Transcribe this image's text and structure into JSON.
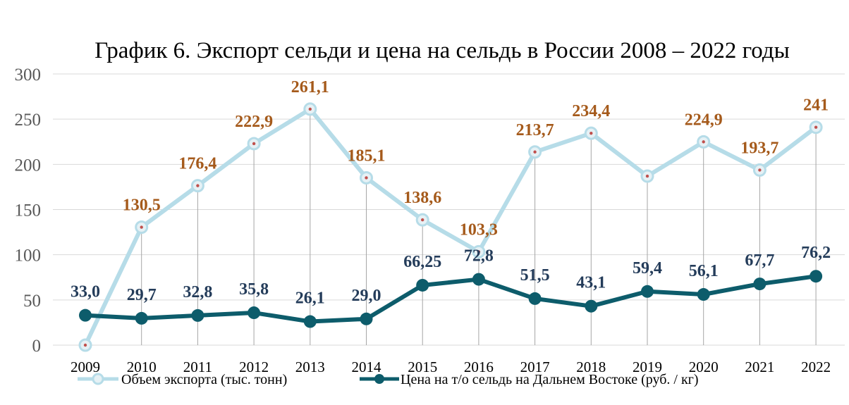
{
  "chart_data": {
    "type": "line",
    "title": "График 6. Экспорт сельди и цена на сельдь в России 2008 – 2022 годы",
    "categories": [
      "2009",
      "2010",
      "2011",
      "2012",
      "2013",
      "2014",
      "2015",
      "2016",
      "2017",
      "2018",
      "2019",
      "2020",
      "2021",
      "2022"
    ],
    "ylim": [
      0,
      300
    ],
    "yticks": [
      "0",
      "50",
      "100",
      "150",
      "200",
      "250",
      "300"
    ],
    "grid": true,
    "legend_position": "bottom",
    "series": [
      {
        "name": "Объем экспорта (тыс. тонн)",
        "color": "#b6dce8",
        "marker_color": "#c0504d",
        "label_color": "#a55a1b",
        "values": [
          0,
          130.5,
          176.4,
          222.9,
          261.1,
          185.1,
          138.6,
          103.3,
          213.7,
          234.4,
          187,
          224.9,
          193.7,
          241
        ],
        "labels": [
          "",
          "130,5",
          "176,4",
          "222,9",
          "261,1",
          "185,1",
          "138,6",
          "103,3",
          "213,7",
          "234,4",
          "",
          "224,9",
          "193,7",
          "241"
        ]
      },
      {
        "name": "Цена на т/о сельдь на Дальнем Востоке (руб. / кг)",
        "color": "#0d5c6b",
        "marker_color": "#0d5c6b",
        "label_color": "#243c5a",
        "values": [
          33.0,
          29.7,
          32.8,
          35.8,
          26.1,
          29.0,
          66.25,
          72.8,
          51.5,
          43.1,
          59.4,
          56.1,
          67.7,
          76.2
        ],
        "labels": [
          "33,0",
          "29,7",
          "32,8",
          "35,8",
          "26,1",
          "29,0",
          "66,25",
          "72,8",
          "51,5",
          "43,1",
          "59,4",
          "56,1",
          "67,7",
          "76,2"
        ]
      }
    ]
  }
}
